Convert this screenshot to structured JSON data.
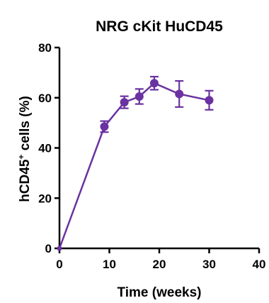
{
  "chart_data": {
    "type": "line",
    "title": "NRG cKit HuCD45",
    "xlabel": "Time (weeks)",
    "ylabel_main": "hCD45",
    "ylabel_sup": "+",
    "ylabel_rest": " cells (%)",
    "xlim": [
      0,
      40
    ],
    "ylim": [
      0,
      80
    ],
    "xticks": [
      0,
      10,
      20,
      30,
      40
    ],
    "yticks": [
      0,
      20,
      40,
      60,
      80
    ],
    "grid": false,
    "colors": {
      "series": "#6a32a0",
      "axis": "#000000"
    },
    "series": [
      {
        "x": [
          0,
          9,
          13,
          16,
          19,
          24,
          30
        ],
        "y": [
          0,
          48.5,
          58.2,
          60.5,
          65.8,
          61.5,
          59.0
        ],
        "err": [
          0,
          2.2,
          2.4,
          3.0,
          2.6,
          5.2,
          3.8
        ]
      }
    ]
  }
}
